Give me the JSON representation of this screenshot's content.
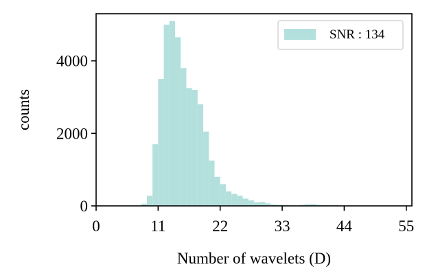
{
  "chart_data": {
    "type": "bar",
    "title": "",
    "xlabel": "Number of wavelets (D)",
    "ylabel": "counts",
    "xlim": [
      0,
      56
    ],
    "ylim": [
      0,
      5300
    ],
    "xticks": [
      0,
      11,
      22,
      33,
      44,
      55
    ],
    "xtick_labels": [
      "0",
      "11",
      "22",
      "33",
      "44",
      "55"
    ],
    "yticks": [
      0,
      2000,
      4000
    ],
    "ytick_labels": [
      "0",
      "2000",
      "4000"
    ],
    "bin_width": 1,
    "series": [
      {
        "name": "SNR : 134",
        "color": "#b3e0dc",
        "bins": [
          {
            "x0": 8,
            "value": 60
          },
          {
            "x0": 9,
            "value": 280
          },
          {
            "x0": 10,
            "value": 1700
          },
          {
            "x0": 11,
            "value": 3500
          },
          {
            "x0": 12,
            "value": 5000
          },
          {
            "x0": 13,
            "value": 5100
          },
          {
            "x0": 14,
            "value": 4650
          },
          {
            "x0": 15,
            "value": 3800
          },
          {
            "x0": 16,
            "value": 3250
          },
          {
            "x0": 17,
            "value": 3200
          },
          {
            "x0": 18,
            "value": 2800
          },
          {
            "x0": 19,
            "value": 2050
          },
          {
            "x0": 20,
            "value": 1250
          },
          {
            "x0": 21,
            "value": 800
          },
          {
            "x0": 22,
            "value": 600
          },
          {
            "x0": 23,
            "value": 400
          },
          {
            "x0": 24,
            "value": 330
          },
          {
            "x0": 25,
            "value": 280
          },
          {
            "x0": 26,
            "value": 200
          },
          {
            "x0": 27,
            "value": 150
          },
          {
            "x0": 28,
            "value": 100
          },
          {
            "x0": 29,
            "value": 110
          },
          {
            "x0": 30,
            "value": 70
          },
          {
            "x0": 31,
            "value": 40
          },
          {
            "x0": 32,
            "value": 30
          },
          {
            "x0": 33,
            "value": 20
          },
          {
            "x0": 34,
            "value": 15
          },
          {
            "x0": 35,
            "value": 10
          },
          {
            "x0": 36,
            "value": 30
          },
          {
            "x0": 37,
            "value": 45
          },
          {
            "x0": 38,
            "value": 50
          },
          {
            "x0": 39,
            "value": 30
          },
          {
            "x0": 40,
            "value": 20
          },
          {
            "x0": 41,
            "value": 15
          },
          {
            "x0": 42,
            "value": 25
          },
          {
            "x0": 43,
            "value": 10
          },
          {
            "x0": 44,
            "value": 5
          }
        ]
      }
    ],
    "legend": {
      "position": "top-right",
      "label": "SNR : 134"
    },
    "grid": false
  }
}
